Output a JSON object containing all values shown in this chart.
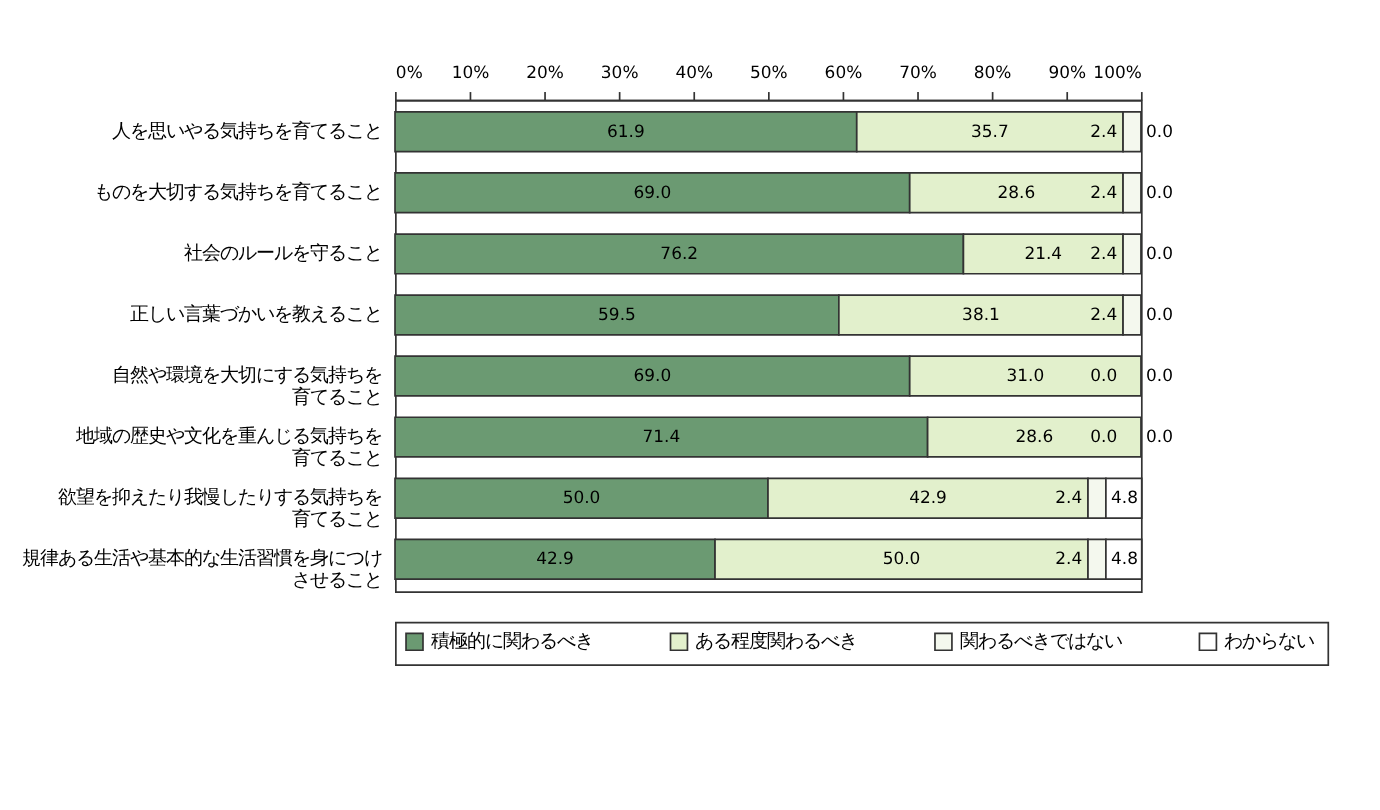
{
  "chart_data": {
    "type": "bar",
    "orientation": "horizontal",
    "stacked": true,
    "legend": "bottom",
    "grid": false,
    "categories": [
      "人を思いやる気持ちを育てること",
      "ものを大切する気持ちを育てること",
      "社会のルールを守ること",
      "正しい言葉づかいを教えること",
      "自然や環境を大切にする気持ちを育てること",
      "地域の歴史や文化を重んじる気持ちを育てること",
      "欲望を抑えたり我慢したりする気持ちを育てること",
      "規律ある生活や基本的な生活習慣を身につけさせること"
    ],
    "series": [
      {
        "name": "積極的に関わるべき",
        "color": "#6b9a72",
        "values": [
          61.9,
          69.0,
          76.2,
          59.5,
          69.0,
          71.4,
          50.0,
          42.9
        ],
        "value_labels": [
          "61.9",
          "69.0",
          "76.2",
          "59.5",
          "69.0",
          "71.4",
          "50.0",
          "42.9"
        ]
      },
      {
        "name": "ある程度関わるべき",
        "color": "#e2f0cc",
        "values": [
          35.7,
          28.6,
          21.4,
          38.1,
          31.0,
          28.6,
          42.9,
          50.0
        ],
        "value_labels": [
          "35.7",
          "28.6",
          "21.4",
          "38.1",
          "31.0",
          "28.6",
          "42.9",
          "50.0"
        ]
      },
      {
        "name": "関わるべきではない",
        "color": "#f4f8ee",
        "values": [
          2.4,
          2.4,
          2.4,
          2.4,
          0.0,
          0.0,
          2.4,
          2.4
        ],
        "value_labels": [
          "2.4",
          "2.4",
          "2.4",
          "2.4",
          "0.0",
          "0.0",
          "2.4",
          "2.4"
        ]
      },
      {
        "name": "わからない",
        "color": "#ffffff",
        "values": [
          0.0,
          0.0,
          0.0,
          0.0,
          0.0,
          0.0,
          4.8,
          4.8
        ],
        "value_labels": [
          "0.0",
          "0.0",
          "0.0",
          "0.0",
          "0.0",
          "0.0",
          "4.8",
          "4.8"
        ]
      }
    ],
    "xlim": [
      0,
      100
    ],
    "xticks": [
      {
        "value": 0,
        "label": "0%"
      },
      {
        "value": 10,
        "label": "10%"
      },
      {
        "value": 20,
        "label": "20%"
      },
      {
        "value": 30,
        "label": "30%"
      },
      {
        "value": 40,
        "label": "40%"
      },
      {
        "value": 50,
        "label": "50%"
      },
      {
        "value": 60,
        "label": "60%"
      },
      {
        "value": 70,
        "label": "70%"
      },
      {
        "value": 80,
        "label": "80%"
      },
      {
        "value": 90,
        "label": "90%"
      },
      {
        "value": 100,
        "label": "100%"
      }
    ]
  }
}
